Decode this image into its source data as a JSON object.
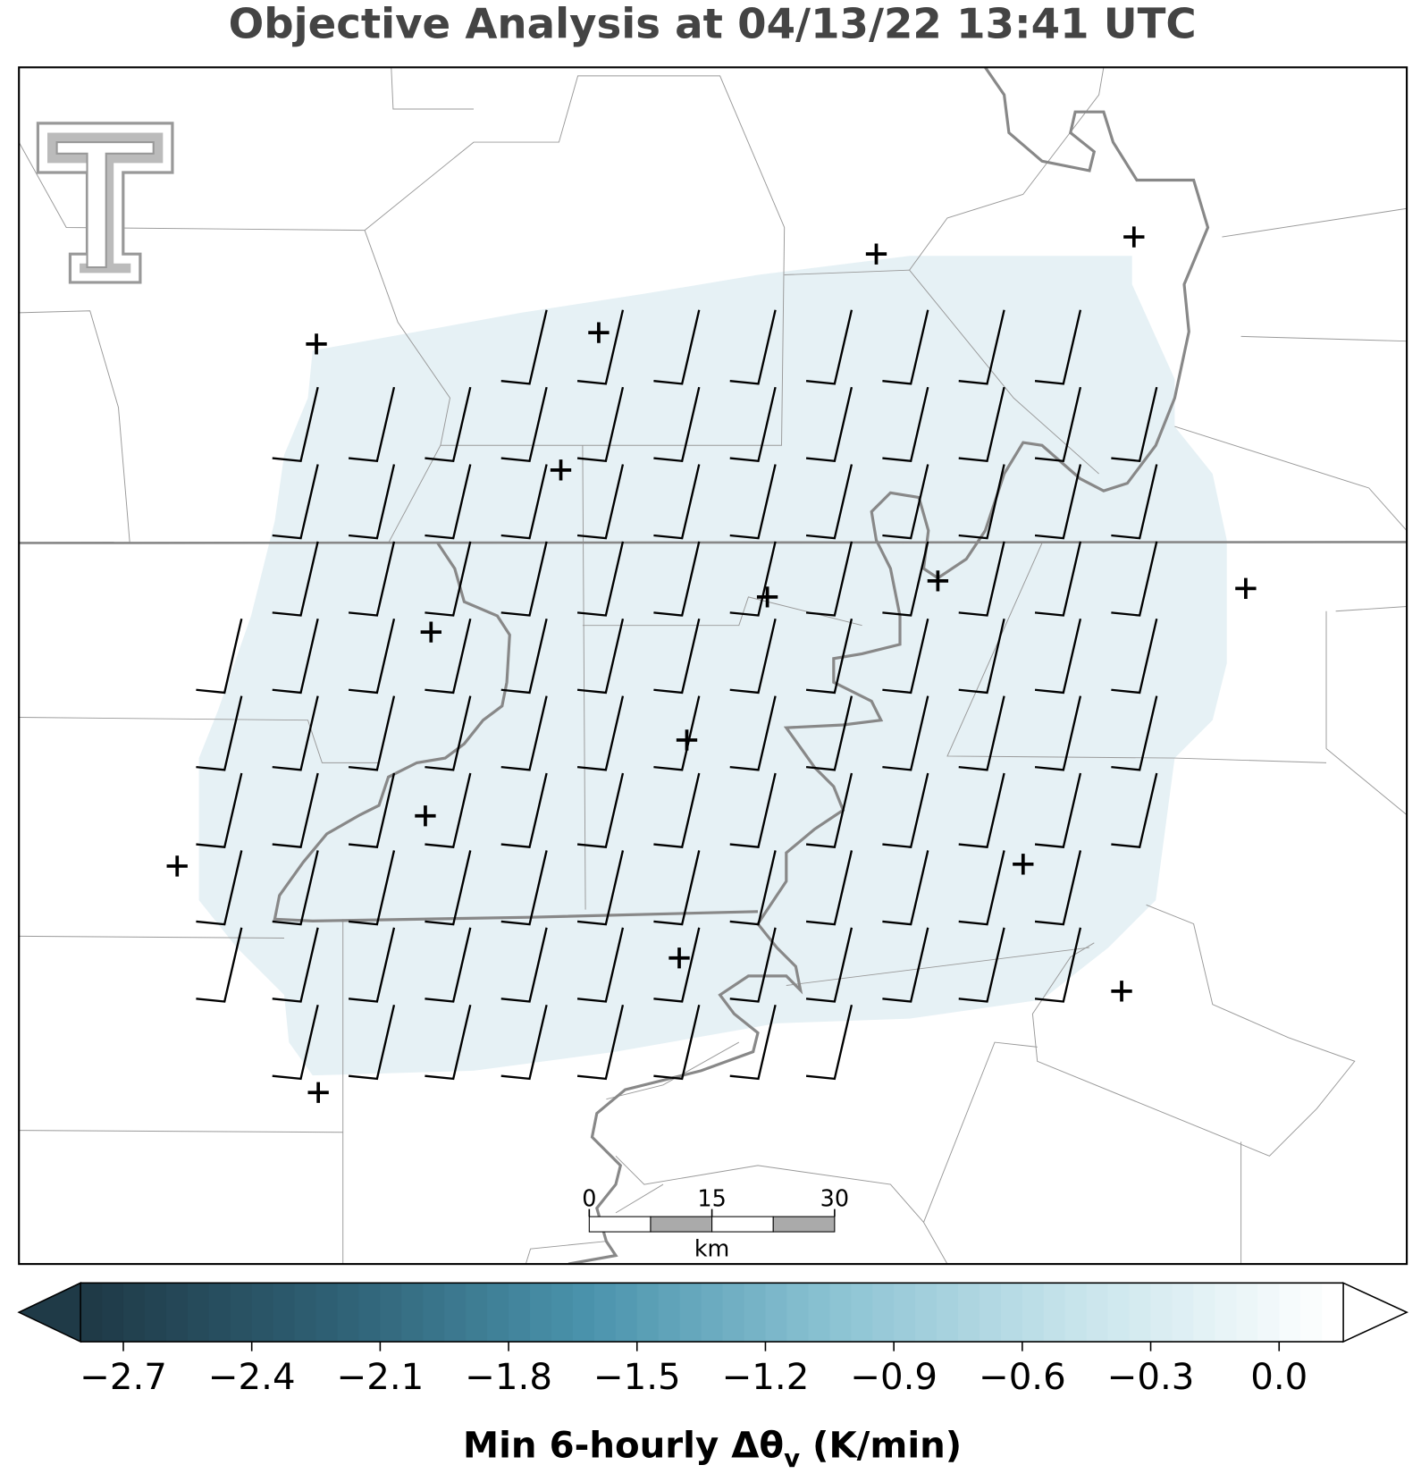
{
  "title": "Objective Analysis at 04/13/22 13:41 UTC",
  "scale_bar": {
    "ticks": [
      0,
      15,
      30
    ],
    "unit": "km"
  },
  "colorbar": {
    "lim": [
      -2.8,
      0.15
    ],
    "cmap": [
      "#1f3a47",
      "#2f6175",
      "#4a93ac",
      "#8cc3d3",
      "#c9e5ec",
      "#ffffff"
    ],
    "ticks": [
      {
        "value": -2.7,
        "label": "−2.7"
      },
      {
        "value": -2.4,
        "label": "−2.4"
      },
      {
        "value": -2.1,
        "label": "−2.1"
      },
      {
        "value": -1.8,
        "label": "−1.8"
      },
      {
        "value": -1.5,
        "label": "−1.5"
      },
      {
        "value": -1.2,
        "label": "−1.2"
      },
      {
        "value": -0.9,
        "label": "−0.9"
      },
      {
        "value": -0.6,
        "label": "−0.6"
      },
      {
        "value": -0.3,
        "label": "−0.3"
      },
      {
        "value": 0.0,
        "label": "0.0"
      }
    ],
    "label": "Min 6-hourly Δθ",
    "label_sub": "v",
    "label_unit": " (K/min)"
  }
}
